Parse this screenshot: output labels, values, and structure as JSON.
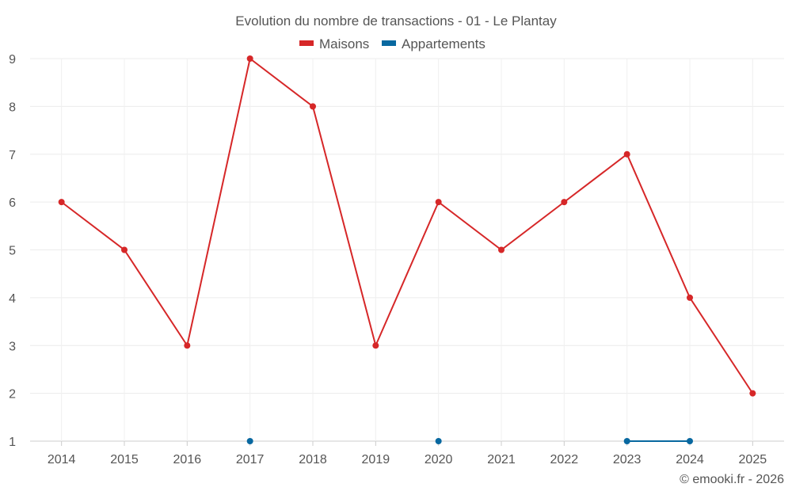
{
  "chart_data": {
    "type": "line",
    "title": "Evolution du nombre de transactions - 01 - Le Plantay",
    "categories": [
      "2014",
      "2015",
      "2016",
      "2017",
      "2018",
      "2019",
      "2020",
      "2021",
      "2022",
      "2023",
      "2024",
      "2025"
    ],
    "series": [
      {
        "name": "Maisons",
        "color": "#d62728",
        "values": [
          6,
          5,
          3,
          9,
          8,
          3,
          6,
          5,
          6,
          7,
          4,
          2
        ]
      },
      {
        "name": "Appartements",
        "color": "#0868a0",
        "values": [
          null,
          null,
          null,
          1,
          null,
          null,
          1,
          null,
          null,
          1,
          1,
          null
        ]
      }
    ],
    "yticks": [
      "1",
      "2",
      "3",
      "4",
      "5",
      "6",
      "7",
      "8",
      "9"
    ],
    "ylim": [
      1,
      9
    ],
    "xlabel": "",
    "ylabel": "",
    "grid": true,
    "legend": "top-center",
    "credit": "© emooki.fr - 2026"
  }
}
